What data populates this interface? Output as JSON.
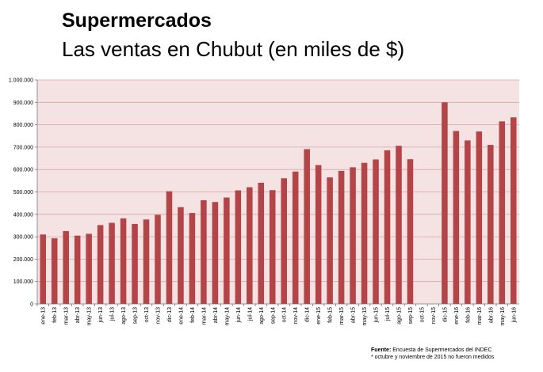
{
  "header": {
    "title": "Supermercados",
    "subtitle": "Las ventas en Chubut (en miles de $)"
  },
  "footer": {
    "source_label": "Fuente:",
    "source_text": "Encuesta de Supermercados del INDEC",
    "note": "* octubre y noviembre de 2015 no fueron medidos"
  },
  "colors": {
    "bar": "#b34448",
    "plot_background": "#f5e3e3",
    "grid": "#d9a5a5"
  },
  "chart_data": {
    "type": "bar",
    "categories": [
      "ene-13",
      "feb-13",
      "mar-13",
      "abr-13",
      "may-13",
      "jun-13",
      "jul-13",
      "ago-13",
      "sep-13",
      "oct-13",
      "nov-13",
      "dic-13",
      "ene-14",
      "feb-14",
      "mar-14",
      "abr-14",
      "may-14",
      "jun-14",
      "jul-14",
      "ago-14",
      "sep-14",
      "oct-14",
      "nov-14",
      "dic-14",
      "ene-15",
      "feb-15",
      "mar-15",
      "abr-15",
      "may-15",
      "jun-15",
      "jul-15",
      "ago-15",
      "sep-15",
      "oct-15",
      "nov-15",
      "dic-15",
      "ene-16",
      "feb-16",
      "mar-16",
      "abr-16",
      "may-16",
      "jun-16"
    ],
    "values": [
      310000,
      293000,
      325000,
      305000,
      313000,
      352000,
      362000,
      382000,
      357000,
      377000,
      398000,
      503000,
      432000,
      406000,
      463000,
      455000,
      475000,
      507000,
      521000,
      541000,
      508000,
      561000,
      591000,
      691000,
      620000,
      565000,
      594000,
      610000,
      630000,
      645000,
      686000,
      706000,
      646000,
      null,
      null,
      900000,
      772000,
      730000,
      770000,
      710000,
      815000,
      833000
    ],
    "y_ticks": [
      "0",
      "100.000",
      "200.000",
      "300.000",
      "400.000",
      "500.000",
      "600.000",
      "700.000",
      "800.000",
      "900.000",
      "1.000.000"
    ],
    "ylim": [
      0,
      1000000
    ],
    "grid": true,
    "legend": "none"
  }
}
